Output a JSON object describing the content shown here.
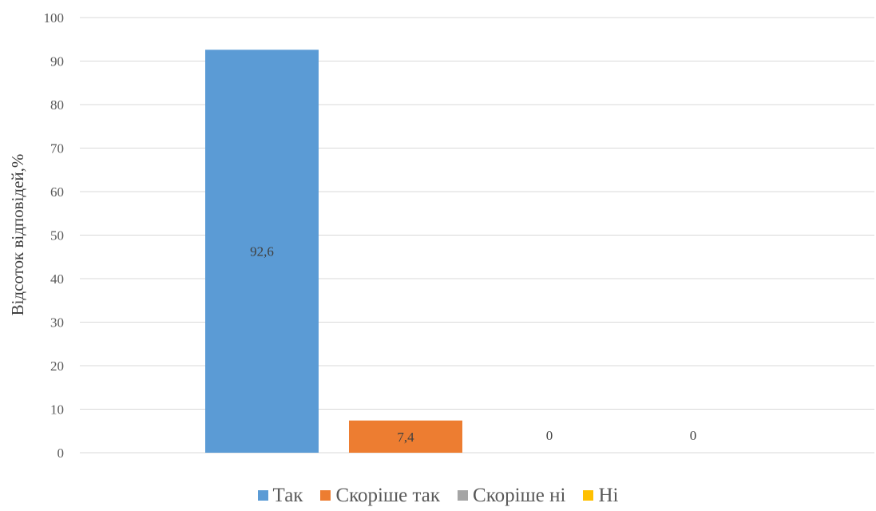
{
  "chart_data": {
    "type": "bar",
    "title": "",
    "xlabel": "",
    "ylabel": "Відсоток відповідей,%",
    "ylim": [
      0,
      100
    ],
    "yticks": [
      "0",
      "10",
      "20",
      "30",
      "40",
      "50",
      "60",
      "70",
      "80",
      "90",
      "100"
    ],
    "grid": true,
    "legend_position": "bottom",
    "series": [
      {
        "name": "Так",
        "value": 92.6,
        "label": "92,6",
        "color": "#5B9BD5"
      },
      {
        "name": "Скоріше так",
        "value": 7.4,
        "label": "7,4",
        "color": "#ED7D31"
      },
      {
        "name": "Скоріше ні",
        "value": 0,
        "label": "0",
        "color": "#A5A5A5"
      },
      {
        "name": "Ні",
        "value": 0,
        "label": "0",
        "color": "#FFC000"
      }
    ]
  }
}
